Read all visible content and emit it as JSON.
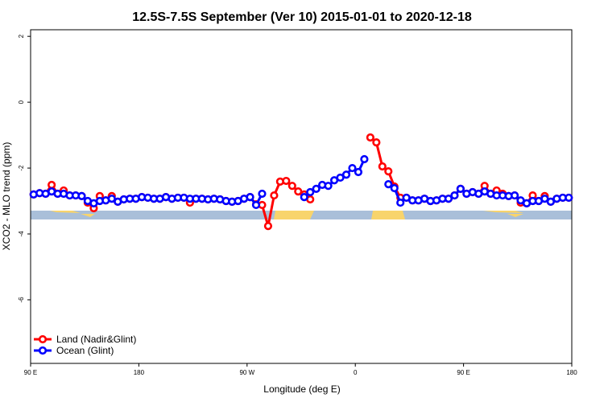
{
  "chart_data": {
    "type": "line",
    "title": "12.5S-7.5S September (Ver 10)   2015-01-01 to 2020-12-18",
    "x_label": "Longitude (deg E)",
    "y_label": "XCO2 - MLO trend (ppm)",
    "xlim": [
      90,
      540
    ],
    "xticks": [
      {
        "value": 90,
        "label": "90 E"
      },
      180,
      {
        "value": 270,
        "label": "90 W"
      },
      {
        "value": 360,
        "label": "0"
      },
      {
        "value": 450,
        "label": "90 E"
      },
      {
        "value": 540,
        "label": "180"
      }
    ],
    "ylim": [
      -7.93,
      2.2
    ],
    "yticks": [
      -6,
      -4,
      -2,
      0,
      2
    ],
    "legend": "bottom-left",
    "x": [
      92.5,
      97.5,
      102.5,
      107.5,
      112.5,
      117.5,
      122.5,
      127.5,
      132.5,
      137.5,
      142.5,
      147.5,
      152.5,
      157.5,
      162.5,
      167.5,
      172.5,
      177.5,
      182.5,
      187.5,
      192.5,
      197.5,
      202.5,
      207.5,
      212.5,
      217.5,
      222.5,
      227.5,
      232.5,
      237.5,
      242.5,
      247.5,
      252.5,
      257.5,
      262.5,
      267.5,
      272.5,
      277.5,
      282.5,
      287.5,
      292.5,
      297.5,
      302.5,
      307.5,
      312.5,
      317.5,
      322.5,
      327.5,
      332.5,
      337.5,
      342.5,
      347.5,
      352.5,
      357.5,
      362.5,
      367.5,
      372.5,
      377.5,
      382.5,
      387.5,
      392.5,
      397.5,
      402.5,
      407.5,
      412.5,
      417.5,
      422.5,
      427.5,
      432.5,
      437.5,
      442.5,
      447.5,
      452.5,
      457.5,
      462.5,
      467.5,
      472.5,
      477.5,
      482.5,
      487.5,
      492.5,
      497.5,
      502.5,
      507.5,
      512.5,
      517.5,
      522.5,
      527.5,
      532.5,
      537.5
    ],
    "series": [
      {
        "name": "Land (Nadir&Glint)",
        "color": "#ff0000",
        "values": [
          -2.8,
          -2.76,
          -2.78,
          -2.51,
          -2.78,
          -2.68,
          -2.83,
          -2.83,
          -2.85,
          -3.05,
          -3.22,
          -2.85,
          -2.98,
          -2.85,
          -3.02,
          -2.95,
          -2.93,
          -2.93,
          -2.88,
          -2.9,
          -2.93,
          -2.93,
          -2.88,
          -2.93,
          -2.9,
          -2.9,
          -3.05,
          -2.93,
          -2.93,
          -2.95,
          -2.93,
          -2.95,
          -3.0,
          -3.02,
          -3.0,
          -2.93,
          -2.88,
          -3.1,
          -3.12,
          -3.76,
          -2.83,
          -2.41,
          -2.39,
          -2.54,
          -2.71,
          -2.8,
          -2.95,
          null,
          null,
          null,
          null,
          null,
          null,
          null,
          null,
          null,
          -1.07,
          -1.22,
          -1.95,
          -2.1,
          -2.56,
          -2.9,
          -2.9,
          -2.98,
          -2.98,
          -2.93,
          -3.0,
          -2.98,
          -2.93,
          -2.93,
          -2.83,
          -2.63,
          -2.78,
          -2.73,
          -2.78,
          -2.54,
          -2.78,
          -2.68,
          -2.78,
          -2.85,
          -2.83,
          -3.05,
          -3.07,
          -2.83,
          -3.0,
          -2.85,
          -3.02,
          -2.93,
          -2.9,
          -2.9
        ]
      },
      {
        "name": "Ocean (Glint)",
        "color": "#0000ff",
        "values": [
          -2.8,
          -2.76,
          -2.78,
          -2.71,
          -2.78,
          -2.78,
          -2.83,
          -2.83,
          -2.85,
          -3.0,
          -3.07,
          -3.0,
          -2.98,
          -2.93,
          -3.02,
          -2.95,
          -2.93,
          -2.93,
          -2.88,
          -2.9,
          -2.93,
          -2.93,
          -2.88,
          -2.93,
          -2.9,
          -2.9,
          -2.93,
          -2.93,
          -2.93,
          -2.95,
          -2.93,
          -2.95,
          -3.0,
          -3.02,
          -3.0,
          -2.93,
          -2.88,
          -3.12,
          -2.78,
          null,
          null,
          null,
          null,
          null,
          null,
          -2.88,
          -2.73,
          -2.63,
          -2.51,
          -2.54,
          -2.37,
          -2.29,
          -2.2,
          -2.0,
          -2.12,
          -1.73,
          null,
          null,
          null,
          -2.49,
          -2.61,
          -3.05,
          -2.9,
          -2.98,
          -2.98,
          -2.93,
          -3.0,
          -2.98,
          -2.93,
          -2.93,
          -2.83,
          -2.63,
          -2.78,
          -2.73,
          -2.78,
          -2.71,
          -2.78,
          -2.83,
          -2.83,
          -2.85,
          -2.83,
          -2.98,
          -3.07,
          -3.0,
          -3.0,
          -2.93,
          -3.02,
          -2.93,
          -2.9,
          -2.9
        ]
      }
    ]
  }
}
